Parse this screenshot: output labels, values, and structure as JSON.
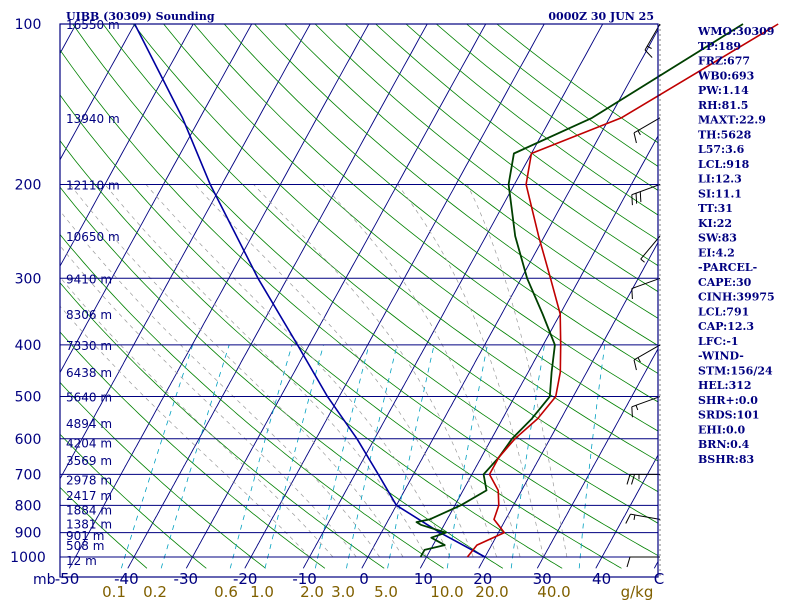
{
  "header": {
    "title": "UIBB (30309) Sounding",
    "datetime": "0000Z 30 JUN 25"
  },
  "indices": [
    "WMO:30309",
    "TP:189",
    "FRZ:677",
    "WB0:693",
    "PW:1.14",
    "RH:81.5",
    "MAXT:22.9",
    "TH:5628",
    "L57:3.6",
    "LCL:918",
    "LI:12.3",
    "SI:11.1",
    "TT:31",
    "KI:22",
    "SW:83",
    "EI:4.2",
    "-PARCEL-",
    "CAPE:30",
    "CINH:39975",
    "LCL:791",
    "CAP:12.3",
    "LFC:-1",
    "-WIND-",
    "STM:156/24",
    "HEL:312",
    "SHR+:0.0",
    "SRDS:101",
    "EHI:0.0",
    "BRN:0.4",
    "BSHR:83"
  ],
  "colors": {
    "frame": "#000080",
    "isobar": "#000080",
    "isotherm": "#000080",
    "dry_adiabat": "#008000",
    "moist_adiabat": "#9a9a9a",
    "mixing_ratio": "#00a0c0",
    "temperature": "#c00000",
    "dewpoint": "#004000",
    "parcel": "#0000a0",
    "axis_text": "#000080",
    "mixing_text": "#806000"
  },
  "chart_data": {
    "type": "skew-t",
    "pressure_unit": "mb",
    "pressure_levels": [
      1000,
      900,
      800,
      700,
      600,
      500,
      400,
      300,
      200,
      100
    ],
    "height_labels": [
      {
        "p": 1013,
        "label": "12 m"
      },
      {
        "p": 950,
        "label": "508 m"
      },
      {
        "p": 910,
        "label": "901 m"
      },
      {
        "p": 865,
        "label": "1381 m"
      },
      {
        "p": 815,
        "label": "1884 m"
      },
      {
        "p": 765,
        "label": "2417 m"
      },
      {
        "p": 715,
        "label": "2978 m"
      },
      {
        "p": 658,
        "label": "3569 m"
      },
      {
        "p": 610,
        "label": "4204 m"
      },
      {
        "p": 560,
        "label": "4894 m"
      },
      {
        "p": 500,
        "label": "5640 m"
      },
      {
        "p": 450,
        "label": "6438 m"
      },
      {
        "p": 400,
        "label": "7330 m"
      },
      {
        "p": 350,
        "label": "8306 m"
      },
      {
        "p": 300,
        "label": "9410 m"
      },
      {
        "p": 250,
        "label": "10650 m"
      },
      {
        "p": 200,
        "label": "12110 m"
      },
      {
        "p": 150,
        "label": "13940 m"
      },
      {
        "p": 100,
        "label": "16550 m"
      }
    ],
    "temperature_ticks": [
      -50,
      -40,
      -30,
      -20,
      -10,
      0,
      10,
      20,
      30,
      40
    ],
    "temperature_unit": "C",
    "mixing_ratio_labels": [
      "0.1",
      "0.2",
      "0.6",
      "1.0",
      "2.0",
      "3.0",
      "5.0",
      "10.0",
      "20.0",
      "40.0"
    ],
    "mixing_ratio_unit": "g/kg",
    "temperature_profile": [
      {
        "p": 1000,
        "t": 17
      },
      {
        "p": 950,
        "t": 17.5
      },
      {
        "p": 900,
        "t": 21
      },
      {
        "p": 850,
        "t": 18
      },
      {
        "p": 800,
        "t": 17.5
      },
      {
        "p": 750,
        "t": 16
      },
      {
        "p": 700,
        "t": 13
      },
      {
        "p": 650,
        "t": 13
      },
      {
        "p": 600,
        "t": 14
      },
      {
        "p": 550,
        "t": 16
      },
      {
        "p": 500,
        "t": 17
      },
      {
        "p": 450,
        "t": 15.5
      },
      {
        "p": 400,
        "t": 13
      },
      {
        "p": 350,
        "t": 10
      },
      {
        "p": 300,
        "t": 5
      },
      {
        "p": 250,
        "t": -1
      },
      {
        "p": 200,
        "t": -8
      },
      {
        "p": 175,
        "t": -10
      },
      {
        "p": 150,
        "t": 2
      },
      {
        "p": 100,
        "t": 20
      }
    ],
    "dewpoint_profile": [
      {
        "p": 1000,
        "t": 9
      },
      {
        "p": 970,
        "t": 9
      },
      {
        "p": 950,
        "t": 12
      },
      {
        "p": 920,
        "t": 9
      },
      {
        "p": 900,
        "t": 11
      },
      {
        "p": 870,
        "t": 6
      },
      {
        "p": 860,
        "t": 5
      },
      {
        "p": 850,
        "t": 7
      },
      {
        "p": 800,
        "t": 11
      },
      {
        "p": 750,
        "t": 14
      },
      {
        "p": 700,
        "t": 12
      },
      {
        "p": 650,
        "t": 13
      },
      {
        "p": 600,
        "t": 13.5
      },
      {
        "p": 550,
        "t": 15
      },
      {
        "p": 500,
        "t": 16
      },
      {
        "p": 450,
        "t": 14
      },
      {
        "p": 400,
        "t": 12
      },
      {
        "p": 350,
        "t": 7
      },
      {
        "p": 300,
        "t": 1
      },
      {
        "p": 250,
        "t": -5
      },
      {
        "p": 200,
        "t": -11
      },
      {
        "p": 175,
        "t": -13
      },
      {
        "p": 150,
        "t": -3
      },
      {
        "p": 100,
        "t": 14
      }
    ],
    "parcel_profile": [
      {
        "p": 1000,
        "t": 20
      },
      {
        "p": 900,
        "t": 10
      },
      {
        "p": 800,
        "t": 0
      },
      {
        "p": 700,
        "t": -6
      },
      {
        "p": 600,
        "t": -13
      },
      {
        "p": 500,
        "t": -22
      },
      {
        "p": 400,
        "t": -32
      },
      {
        "p": 300,
        "t": -45
      },
      {
        "p": 200,
        "t": -62
      },
      {
        "p": 150,
        "t": -73
      },
      {
        "p": 100,
        "t": -90
      }
    ],
    "wind_barbs": [
      {
        "p": 1000,
        "dir": 270,
        "speed": 10
      },
      {
        "p": 850,
        "dir": 280,
        "speed": 15
      },
      {
        "p": 700,
        "dir": 270,
        "speed": 25
      },
      {
        "p": 500,
        "dir": 250,
        "speed": 15
      },
      {
        "p": 400,
        "dir": 240,
        "speed": 15
      },
      {
        "p": 300,
        "dir": 250,
        "speed": 10
      },
      {
        "p": 250,
        "dir": 220,
        "speed": 5
      },
      {
        "p": 200,
        "dir": 250,
        "speed": 30
      },
      {
        "p": 150,
        "dir": 240,
        "speed": 15
      },
      {
        "p": 100,
        "dir": 210,
        "speed": 15
      }
    ]
  }
}
